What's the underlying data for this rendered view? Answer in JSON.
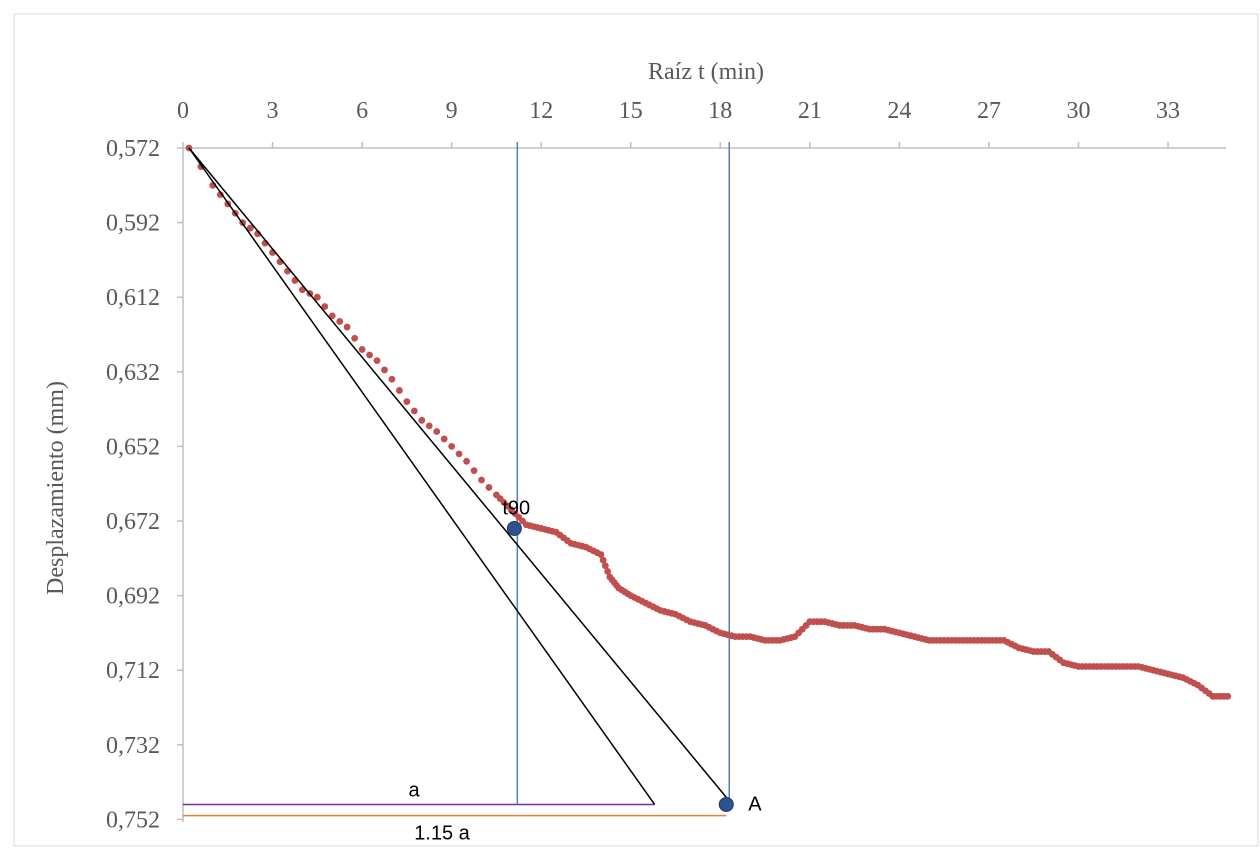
{
  "chart_data": {
    "type": "scatter",
    "title": "",
    "xlabel": "Raíz t (min)",
    "ylabel": "Desplazamiento (mm)",
    "x_axis_position": "top",
    "y_inverted": true,
    "xlim": [
      0,
      35
    ],
    "ylim": [
      0.572,
      0.752
    ],
    "x_ticks": [
      0,
      3,
      6,
      9,
      12,
      15,
      18,
      21,
      24,
      27,
      30,
      33
    ],
    "y_ticks": [
      "0,572",
      "0,592",
      "0,612",
      "0,632",
      "0,652",
      "0,672",
      "0,692",
      "0,712",
      "0,732",
      "0,752"
    ],
    "y_tick_values": [
      0.572,
      0.592,
      0.612,
      0.632,
      0.652,
      0.672,
      0.692,
      0.712,
      0.732,
      0.752
    ],
    "grid": false,
    "legend": "none",
    "colors": {
      "points": "#c0504d",
      "tangent_lines": "#000000",
      "vertical_lines": "#4f81bd",
      "marker": "#2e528f",
      "a_line": "#7030a0",
      "a115_line": "#ed7d31",
      "axis": "#bfbfbf",
      "text": "#595959"
    },
    "series": [
      {
        "values_xy": [
          [
            0.2,
            0.572
          ],
          [
            1.0,
            0.582
          ],
          [
            1.5,
            0.587
          ],
          [
            2.0,
            0.592
          ],
          [
            2.5,
            0.595
          ],
          [
            3.0,
            0.6
          ],
          [
            3.5,
            0.605
          ],
          [
            4.0,
            0.61
          ],
          [
            4.5,
            0.612
          ],
          [
            5.0,
            0.617
          ],
          [
            5.5,
            0.62
          ],
          [
            6.0,
            0.626
          ],
          [
            6.5,
            0.629
          ],
          [
            7.0,
            0.634
          ],
          [
            7.5,
            0.64
          ],
          [
            8.0,
            0.645
          ],
          [
            8.5,
            0.648
          ],
          [
            9.0,
            0.652
          ],
          [
            9.5,
            0.656
          ],
          [
            10.0,
            0.661
          ],
          [
            10.5,
            0.665
          ],
          [
            11.0,
            0.669
          ],
          [
            11.5,
            0.673
          ],
          [
            12.0,
            0.674
          ],
          [
            12.5,
            0.675
          ],
          [
            13.0,
            0.678
          ],
          [
            13.5,
            0.679
          ],
          [
            14.0,
            0.681
          ],
          [
            14.3,
            0.687
          ],
          [
            14.6,
            0.69
          ],
          [
            15.0,
            0.692
          ],
          [
            15.5,
            0.694
          ],
          [
            16.0,
            0.696
          ],
          [
            16.5,
            0.697
          ],
          [
            17.0,
            0.699
          ],
          [
            17.5,
            0.7
          ],
          [
            18.0,
            0.702
          ],
          [
            18.5,
            0.703
          ],
          [
            19.0,
            0.703
          ],
          [
            19.5,
            0.704
          ],
          [
            20.0,
            0.704
          ],
          [
            20.5,
            0.703
          ],
          [
            21.0,
            0.699
          ],
          [
            21.5,
            0.699
          ],
          [
            22.0,
            0.7
          ],
          [
            22.5,
            0.7
          ],
          [
            23.0,
            0.701
          ],
          [
            23.5,
            0.701
          ],
          [
            24.0,
            0.702
          ],
          [
            24.5,
            0.703
          ],
          [
            25.0,
            0.704
          ],
          [
            25.5,
            0.704
          ],
          [
            26.0,
            0.704
          ],
          [
            26.5,
            0.704
          ],
          [
            27.0,
            0.704
          ],
          [
            27.5,
            0.704
          ],
          [
            28.0,
            0.706
          ],
          [
            28.5,
            0.707
          ],
          [
            29.0,
            0.707
          ],
          [
            29.5,
            0.71
          ],
          [
            30.0,
            0.711
          ],
          [
            30.5,
            0.711
          ],
          [
            31.0,
            0.711
          ],
          [
            31.5,
            0.711
          ],
          [
            32.0,
            0.711
          ],
          [
            32.5,
            0.712
          ],
          [
            33.0,
            0.713
          ],
          [
            33.5,
            0.714
          ],
          [
            34.0,
            0.716
          ],
          [
            34.5,
            0.719
          ],
          [
            35.0,
            0.719
          ]
        ]
      }
    ],
    "reference_lines": [
      {
        "from": [
          0.2,
          0.572
        ],
        "to": [
          15.8,
          0.748
        ]
      },
      {
        "from": [
          0.2,
          0.572
        ],
        "to": [
          18.4,
          0.748
        ]
      }
    ],
    "vertical_lines": [
      {
        "x": 11.2,
        "y_from": 0.572,
        "y_to": 0.748
      },
      {
        "x": 18.3,
        "y_from": 0.572,
        "y_to": 0.748
      }
    ],
    "horizontal_lines": [
      {
        "label": "a",
        "y": 0.748,
        "x_from": 0,
        "x_to": 15.8
      },
      {
        "label": "1.15 a",
        "y": 0.751,
        "x_from": 0,
        "x_to": 18.2
      }
    ],
    "markers": [
      {
        "label": "t90",
        "x": 11.1,
        "y": 0.674
      },
      {
        "label": "A",
        "x": 18.2,
        "y": 0.748
      }
    ]
  }
}
